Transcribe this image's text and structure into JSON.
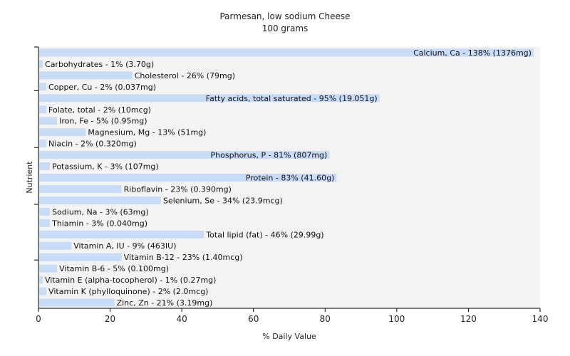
{
  "chart_data": {
    "type": "bar",
    "orientation": "horizontal",
    "title": "Parmesan, low sodium Cheese",
    "subtitle": "100 grams",
    "xlabel": "% Daily Value",
    "ylabel": "Nutrient",
    "xlim": [
      0,
      140
    ],
    "xticks": [
      0,
      20,
      40,
      60,
      80,
      100,
      120,
      140
    ],
    "grid": false,
    "bar_color": "#c6dcf7",
    "background_band_color": "#f3f3f3",
    "bars": [
      {
        "name": "Calcium, Ca",
        "value": 138,
        "label": "Calcium, Ca - 138% (1376mg)"
      },
      {
        "name": "Carbohydrates",
        "value": 1,
        "label": "Carbohydrates - 1% (3.70g)"
      },
      {
        "name": "Cholesterol",
        "value": 26,
        "label": "Cholesterol - 26% (79mg)"
      },
      {
        "name": "Copper, Cu",
        "value": 2,
        "label": "Copper, Cu - 2% (0.037mg)"
      },
      {
        "name": "Fatty acids, total saturated",
        "value": 95,
        "label": "Fatty acids, total saturated - 95% (19.051g)"
      },
      {
        "name": "Folate, total",
        "value": 2,
        "label": "Folate, total - 2% (10mcg)"
      },
      {
        "name": "Iron, Fe",
        "value": 5,
        "label": "Iron, Fe - 5% (0.95mg)"
      },
      {
        "name": "Magnesium, Mg",
        "value": 13,
        "label": "Magnesium, Mg - 13% (51mg)"
      },
      {
        "name": "Niacin",
        "value": 2,
        "label": "Niacin - 2% (0.320mg)"
      },
      {
        "name": "Phosphorus, P",
        "value": 81,
        "label": "Phosphorus, P - 81% (807mg)"
      },
      {
        "name": "Potassium, K",
        "value": 3,
        "label": "Potassium, K - 3% (107mg)"
      },
      {
        "name": "Protein",
        "value": 83,
        "label": "Protein - 83% (41.60g)"
      },
      {
        "name": "Riboflavin",
        "value": 23,
        "label": "Riboflavin - 23% (0.390mg)"
      },
      {
        "name": "Selenium, Se",
        "value": 34,
        "label": "Selenium, Se - 34% (23.9mcg)"
      },
      {
        "name": "Sodium, Na",
        "value": 3,
        "label": "Sodium, Na - 3% (63mg)"
      },
      {
        "name": "Thiamin",
        "value": 3,
        "label": "Thiamin - 3% (0.040mg)"
      },
      {
        "name": "Total lipid (fat)",
        "value": 46,
        "label": "Total lipid (fat) - 46% (29.99g)"
      },
      {
        "name": "Vitamin A, IU",
        "value": 9,
        "label": "Vitamin A, IU - 9% (463IU)"
      },
      {
        "name": "Vitamin B-12",
        "value": 23,
        "label": "Vitamin B-12 - 23% (1.40mcg)"
      },
      {
        "name": "Vitamin B-6",
        "value": 5,
        "label": "Vitamin B-6 - 5% (0.100mg)"
      },
      {
        "name": "Vitamin E (alpha-tocopherol)",
        "value": 1,
        "label": "Vitamin E (alpha-tocopherol) - 1% (0.27mg)"
      },
      {
        "name": "Vitamin K (phylloquinone)",
        "value": 2,
        "label": "Vitamin K (phylloquinone) - 2% (2.0mcg)"
      },
      {
        "name": "Zinc, Zn",
        "value": 21,
        "label": "Zinc, Zn - 21% (3.19mg)"
      }
    ]
  }
}
